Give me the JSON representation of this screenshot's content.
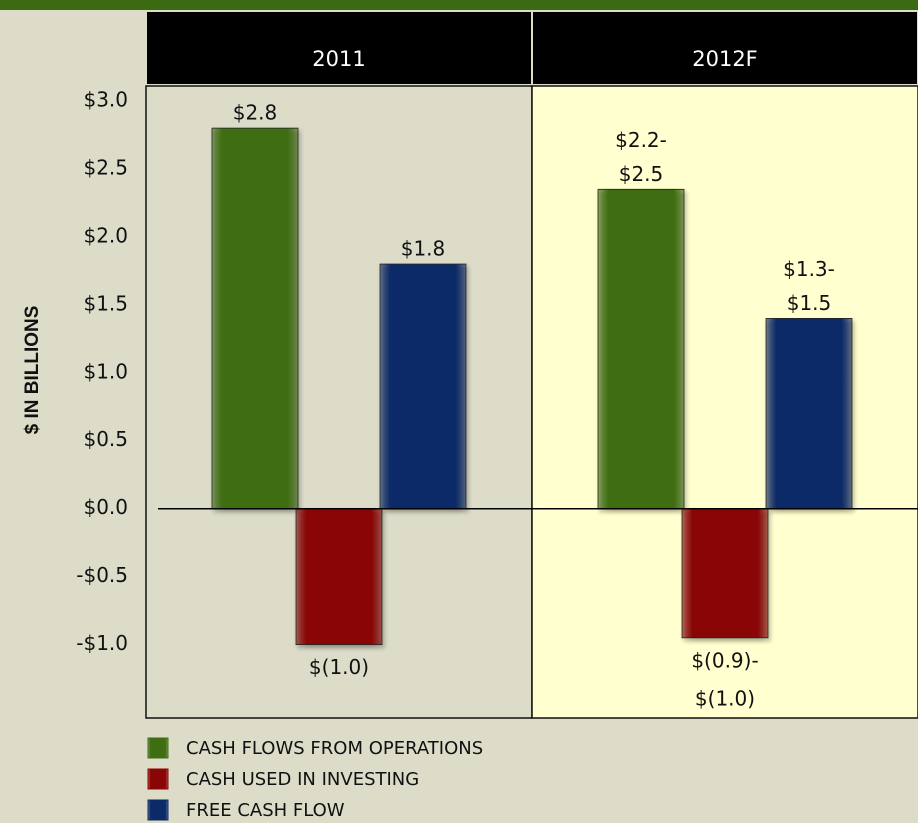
{
  "chart_data": {
    "type": "bar",
    "categories": [
      "2011",
      "2012F"
    ],
    "y_label": "$ IN BILLIONS",
    "series": [
      {
        "name": "CASH FLOWS FROM OPERATIONS",
        "color": "#3f6e12",
        "values": [
          2.8,
          2.35
        ],
        "value_labels": [
          [
            "$2.8"
          ],
          [
            "$2.2-",
            "$2.5"
          ]
        ]
      },
      {
        "name": "CASH USED IN INVESTING",
        "color": "#8a0606",
        "values": [
          -1.0,
          -0.95
        ],
        "value_labels": [
          [
            "$(1.0)"
          ],
          [
            "$(0.9)-",
            "$(1.0)"
          ]
        ]
      },
      {
        "name": "FREE CASH FLOW",
        "color": "#0d2a68",
        "values": [
          1.8,
          1.4
        ],
        "value_labels": [
          [
            "$1.8"
          ],
          [
            "$1.3-",
            "$1.5"
          ]
        ]
      }
    ],
    "ylim": [
      -1.54,
      3.11
    ],
    "yticks": [
      {
        "value": -1.0,
        "label": "-$1.0"
      },
      {
        "value": -0.5,
        "label": "-$0.5"
      },
      {
        "value": 0,
        "label": "$0.0"
      },
      {
        "value": 0.5,
        "label": "$0.5"
      },
      {
        "value": 1.0,
        "label": "$1.0"
      },
      {
        "value": 1.5,
        "label": "$1.5"
      },
      {
        "value": 2.0,
        "label": "$2.0"
      },
      {
        "value": 2.5,
        "label": "$2.5"
      },
      {
        "value": 3.0,
        "label": "$3.0"
      }
    ]
  }
}
